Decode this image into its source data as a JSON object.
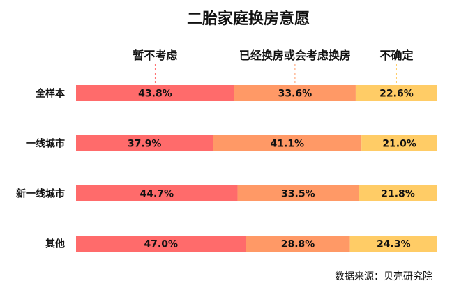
{
  "chart_data": {
    "type": "bar",
    "orientation": "horizontal",
    "stacked": true,
    "title": "二胎家庭换房意愿",
    "categories": [
      "全样本",
      "一线城市",
      "新一线城市",
      "其他"
    ],
    "series": [
      {
        "name": "暂不考虑",
        "values": [
          43.8,
          37.9,
          44.7,
          47.0
        ],
        "labels": [
          "43.8%",
          "37.9%",
          "44.7%",
          "47.0%"
        ],
        "color": "#ff6b6b"
      },
      {
        "name": "已经换房或会考虑换房",
        "values": [
          33.6,
          41.1,
          33.5,
          28.8
        ],
        "labels": [
          "33.6%",
          "41.1%",
          "33.5%",
          "28.8%"
        ],
        "color": "#ff9966"
      },
      {
        "name": "不确定",
        "values": [
          22.6,
          21.0,
          21.8,
          24.3
        ],
        "labels": [
          "22.6%",
          "21.0%",
          "21.8%",
          "24.3%"
        ],
        "color": "#ffcc66"
      }
    ],
    "xlim": [
      0,
      100
    ],
    "legend_position": "top",
    "grid": false,
    "source": "数据来源：贝壳研究院"
  }
}
